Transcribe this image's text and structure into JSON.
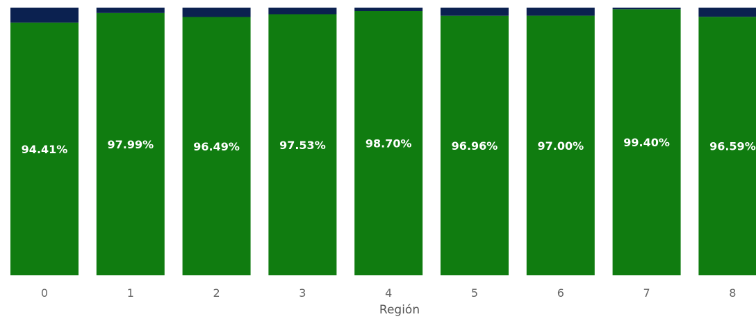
{
  "chart_data": {
    "type": "bar",
    "stacked": true,
    "percent_stacked": true,
    "categories": [
      "0",
      "1",
      "2",
      "3",
      "4",
      "5",
      "6",
      "7",
      "8"
    ],
    "series": [
      {
        "color": "#107c10",
        "values": [
          94.41,
          97.99,
          96.49,
          97.53,
          98.7,
          96.96,
          97.0,
          99.4,
          96.59
        ],
        "labels": [
          "94.41%",
          "97.99%",
          "96.49%",
          "97.53%",
          "98.70%",
          "96.96%",
          "97.00%",
          "99.40%",
          "96.59%"
        ]
      },
      {
        "color": "#0b2150",
        "values": [
          5.59,
          2.01,
          3.51,
          2.47,
          1.3,
          3.04,
          3.0,
          0.6,
          3.41
        ]
      }
    ],
    "xlabel": "Región",
    "ylim": [
      0,
      100
    ],
    "grid": false,
    "legend": "none"
  }
}
